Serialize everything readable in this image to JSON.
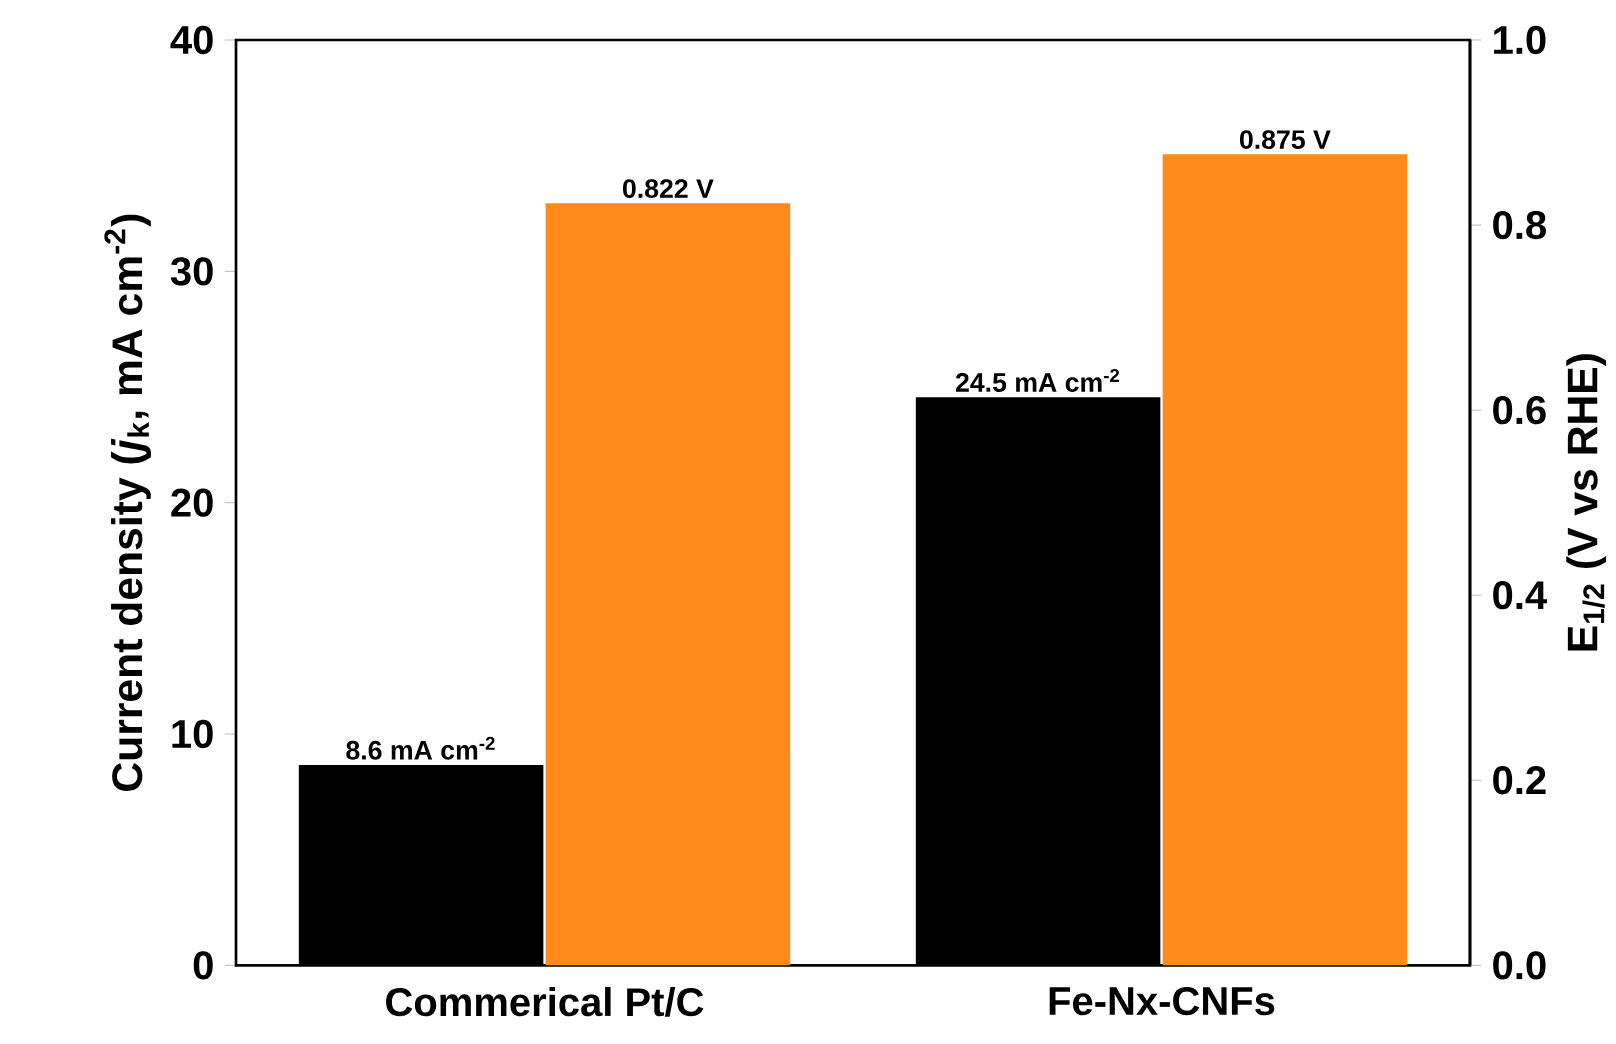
{
  "chart_data": {
    "type": "bar",
    "categories": [
      "Commerical Pt/C",
      "Fe-Nx-CNFs"
    ],
    "ylabel": "Current density (*j*$_{k}$, mA cm$^{-2}$)",
    "y2label": "E$_{1/2}$ (V vs RHE)",
    "ylim": [
      0,
      40
    ],
    "yticks": [
      0,
      10,
      20,
      30,
      40
    ],
    "y2lim": [
      0,
      1
    ],
    "y2ticks": [
      {
        "value": 0,
        "label": "0.0"
      },
      0.2,
      0.4,
      0.6,
      0.8,
      {
        "value": 1,
        "label": "1.0"
      }
    ],
    "series": [
      {
        "type": "bar",
        "color": "#000000",
        "values": [
          8.6,
          24.5
        ],
        "value_labels": [
          "8.6 mA cm$^{-2}$",
          "24.5 mA cm$^{-2}$"
        ]
      },
      {
        "type": "bar",
        "color": "#ff8c1a",
        "axis": "y2",
        "values": [
          0.822,
          0.875
        ],
        "value_labels": [
          "0.822 V",
          "0.875 V"
        ]
      }
    ]
  }
}
